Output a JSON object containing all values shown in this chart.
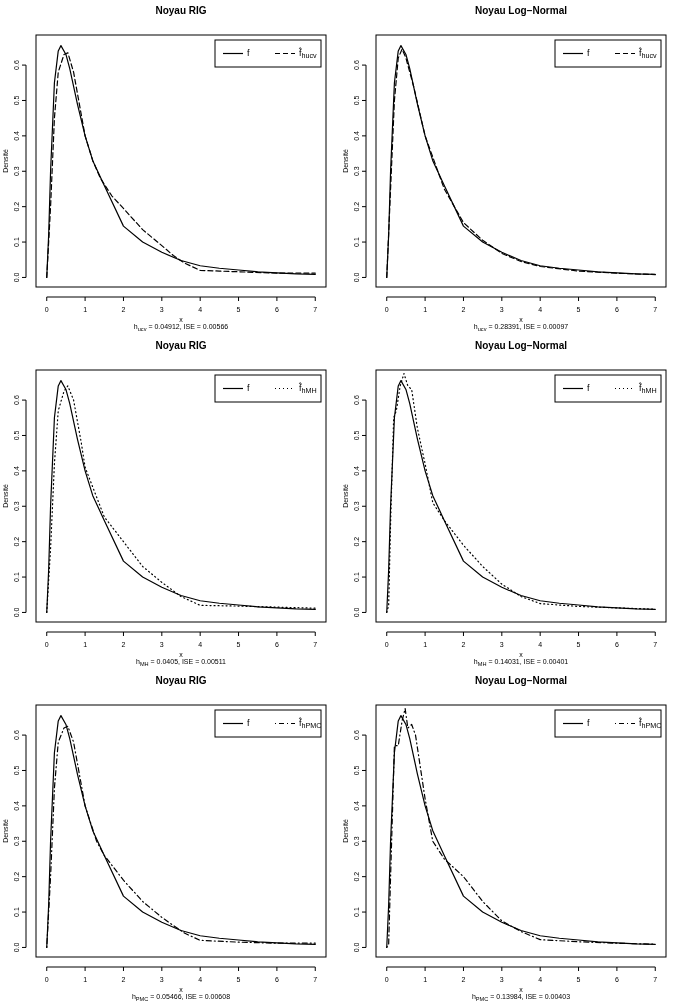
{
  "chart_data": [
    {
      "type": "line",
      "title": "Noyau RIG",
      "xlabel": "x",
      "ylabel": "Densité",
      "annotations": [
        "h$_{ucv}$ = 0.04912,  ISE = 0.00566"
      ],
      "xlim": [
        -0.28,
        7.28
      ],
      "ylim": [
        -0.027,
        0.685
      ],
      "xticks": [
        0,
        1,
        2,
        3,
        4,
        5,
        6,
        7
      ],
      "yticks": [
        {
          "value": 0,
          "label": "0.0"
        },
        {
          "value": 0.1,
          "label": "0.1"
        },
        {
          "value": 0.2,
          "label": "0.2"
        },
        {
          "value": 0.3,
          "label": "0.3"
        },
        {
          "value": 0.4,
          "label": "0.4"
        },
        {
          "value": 0.5,
          "label": "0.5"
        },
        {
          "value": 0.6,
          "label": "0.6"
        }
      ],
      "legend": "top right",
      "series": [
        {
          "name": "f",
          "color": "#000000",
          "line_style": "solid",
          "x": [
            0,
            0.05,
            0.1,
            0.2,
            0.3,
            0.37,
            0.5,
            0.6,
            0.8,
            1,
            1.2,
            1.5,
            2,
            2.5,
            3,
            3.5,
            4,
            4.5,
            5,
            5.5,
            6,
            6.5,
            7
          ],
          "values": [
            0,
            0.12,
            0.3,
            0.55,
            0.64,
            0.655,
            0.63,
            0.59,
            0.49,
            0.4,
            0.33,
            0.26,
            0.145,
            0.1,
            0.071,
            0.048,
            0.033,
            0.026,
            0.021,
            0.016,
            0.013,
            0.01,
            0.0085
          ]
        },
        {
          "name": "f̂$_{h}$$_{ucv}$",
          "color": "#000000",
          "line_style": "dashed",
          "x": [
            0,
            0.1,
            0.2,
            0.3,
            0.45,
            0.55,
            0.7,
            0.9,
            1,
            1.2,
            1.4,
            1.7,
            2,
            2.5,
            3,
            3.3,
            3.6,
            4,
            4.5,
            5,
            6,
            7
          ],
          "values": [
            0,
            0.2,
            0.45,
            0.58,
            0.63,
            0.635,
            0.58,
            0.46,
            0.4,
            0.33,
            0.28,
            0.23,
            0.195,
            0.135,
            0.09,
            0.062,
            0.04,
            0.02,
            0.018,
            0.016,
            0.012,
            0.012
          ]
        }
      ]
    },
    {
      "type": "line",
      "title": "Noyau Log−Normal",
      "xlabel": "x",
      "ylabel": "Densité",
      "annotations": [
        "h$_{ucv}$ = 0.28391,  ISE = 0.00097"
      ],
      "xlim": [
        -0.28,
        7.28
      ],
      "ylim": [
        -0.027,
        0.685
      ],
      "xticks": [
        0,
        1,
        2,
        3,
        4,
        5,
        6,
        7
      ],
      "yticks": [
        {
          "value": 0,
          "label": "0.0"
        },
        {
          "value": 0.1,
          "label": "0.1"
        },
        {
          "value": 0.2,
          "label": "0.2"
        },
        {
          "value": 0.3,
          "label": "0.3"
        },
        {
          "value": 0.4,
          "label": "0.4"
        },
        {
          "value": 0.5,
          "label": "0.5"
        },
        {
          "value": 0.6,
          "label": "0.6"
        }
      ],
      "legend": "top right",
      "series": [
        {
          "name": "f",
          "color": "#000000",
          "line_style": "solid",
          "x": [
            0,
            0.05,
            0.1,
            0.2,
            0.3,
            0.37,
            0.5,
            0.6,
            0.8,
            1,
            1.2,
            1.5,
            2,
            2.5,
            3,
            3.5,
            4,
            4.5,
            5,
            5.5,
            6,
            6.5,
            7
          ],
          "values": [
            0,
            0.12,
            0.3,
            0.55,
            0.64,
            0.655,
            0.63,
            0.59,
            0.49,
            0.4,
            0.33,
            0.26,
            0.145,
            0.1,
            0.071,
            0.048,
            0.033,
            0.026,
            0.021,
            0.016,
            0.013,
            0.01,
            0.0085
          ]
        },
        {
          "name": "f̂$_{h}$$_{ucv}$",
          "color": "#000000",
          "line_style": "dashed",
          "x": [
            0,
            0.1,
            0.2,
            0.3,
            0.4,
            0.5,
            0.7,
            1,
            1.5,
            2,
            2.5,
            3,
            3.5,
            4,
            5,
            6,
            7
          ],
          "values": [
            0,
            0.25,
            0.5,
            0.62,
            0.645,
            0.62,
            0.54,
            0.4,
            0.25,
            0.155,
            0.105,
            0.068,
            0.045,
            0.031,
            0.018,
            0.012,
            0.008
          ]
        }
      ]
    },
    {
      "type": "line",
      "title": "Noyau RIG",
      "xlabel": "x",
      "ylabel": "Densité",
      "annotations": [
        "h$_{MH}$ = 0.0405,  ISE = 0.00511"
      ],
      "xlim": [
        -0.28,
        7.28
      ],
      "ylim": [
        -0.027,
        0.685
      ],
      "xticks": [
        0,
        1,
        2,
        3,
        4,
        5,
        6,
        7
      ],
      "yticks": [
        {
          "value": 0,
          "label": "0.0"
        },
        {
          "value": 0.1,
          "label": "0.1"
        },
        {
          "value": 0.2,
          "label": "0.2"
        },
        {
          "value": 0.3,
          "label": "0.3"
        },
        {
          "value": 0.4,
          "label": "0.4"
        },
        {
          "value": 0.5,
          "label": "0.5"
        },
        {
          "value": 0.6,
          "label": "0.6"
        }
      ],
      "legend": "top right",
      "series": [
        {
          "name": "f",
          "color": "#000000",
          "line_style": "solid",
          "x": [
            0,
            0.05,
            0.1,
            0.2,
            0.3,
            0.37,
            0.5,
            0.6,
            0.8,
            1,
            1.2,
            1.5,
            2,
            2.5,
            3,
            3.5,
            4,
            4.5,
            5,
            5.5,
            6,
            6.5,
            7
          ],
          "values": [
            0,
            0.12,
            0.3,
            0.55,
            0.64,
            0.655,
            0.63,
            0.59,
            0.49,
            0.4,
            0.33,
            0.26,
            0.145,
            0.1,
            0.071,
            0.048,
            0.033,
            0.026,
            0.021,
            0.016,
            0.013,
            0.01,
            0.0085
          ]
        },
        {
          "name": "f̂$_{h}$$_{MH}$",
          "color": "#000000",
          "line_style": "dotted",
          "x": [
            0,
            0.1,
            0.2,
            0.3,
            0.45,
            0.55,
            0.7,
            0.9,
            1,
            1.5,
            2,
            2.5,
            3,
            3.5,
            4,
            5,
            6,
            7
          ],
          "values": [
            0,
            0.18,
            0.42,
            0.57,
            0.625,
            0.64,
            0.6,
            0.48,
            0.41,
            0.27,
            0.2,
            0.13,
            0.085,
            0.045,
            0.02,
            0.018,
            0.015,
            0.012
          ]
        }
      ]
    },
    {
      "type": "line",
      "title": "Noyau Log−Normal",
      "xlabel": "x",
      "ylabel": "Densité",
      "annotations": [
        "h$_{MH}$ = 0.14031,  ISE = 0.00401"
      ],
      "xlim": [
        -0.28,
        7.28
      ],
      "ylim": [
        -0.027,
        0.685
      ],
      "xticks": [
        0,
        1,
        2,
        3,
        4,
        5,
        6,
        7
      ],
      "yticks": [
        {
          "value": 0,
          "label": "0.0"
        },
        {
          "value": 0.1,
          "label": "0.1"
        },
        {
          "value": 0.2,
          "label": "0.2"
        },
        {
          "value": 0.3,
          "label": "0.3"
        },
        {
          "value": 0.4,
          "label": "0.4"
        },
        {
          "value": 0.5,
          "label": "0.5"
        },
        {
          "value": 0.6,
          "label": "0.6"
        }
      ],
      "legend": "top right",
      "series": [
        {
          "name": "f",
          "color": "#000000",
          "line_style": "solid",
          "x": [
            0,
            0.05,
            0.1,
            0.2,
            0.3,
            0.37,
            0.5,
            0.6,
            0.8,
            1,
            1.2,
            1.5,
            2,
            2.5,
            3,
            3.5,
            4,
            4.5,
            5,
            5.5,
            6,
            6.5,
            7
          ],
          "values": [
            0,
            0.12,
            0.3,
            0.55,
            0.64,
            0.655,
            0.63,
            0.59,
            0.49,
            0.4,
            0.33,
            0.26,
            0.145,
            0.1,
            0.071,
            0.048,
            0.033,
            0.026,
            0.021,
            0.016,
            0.013,
            0.01,
            0.0085
          ]
        },
        {
          "name": "f̂$_{h}$$_{MH}$",
          "color": "#000000",
          "line_style": "dotted",
          "x": [
            0,
            0.05,
            0.1,
            0.18,
            0.25,
            0.35,
            0.45,
            0.55,
            0.65,
            0.8,
            1,
            1.2,
            1.5,
            2,
            2.5,
            3,
            3.5,
            4,
            5,
            6,
            7
          ],
          "values": [
            0,
            0.02,
            0.25,
            0.55,
            0.57,
            0.64,
            0.675,
            0.64,
            0.63,
            0.52,
            0.42,
            0.31,
            0.26,
            0.19,
            0.13,
            0.08,
            0.045,
            0.025,
            0.017,
            0.013,
            0.009
          ]
        }
      ]
    },
    {
      "type": "line",
      "title": "Noyau RIG",
      "xlabel": "x",
      "ylabel": "Densité",
      "annotations": [
        "h$_{PMC}$ = 0.05466,  ISE = 0.00608"
      ],
      "xlim": [
        -0.28,
        7.28
      ],
      "ylim": [
        -0.027,
        0.685
      ],
      "xticks": [
        0,
        1,
        2,
        3,
        4,
        5,
        6,
        7
      ],
      "yticks": [
        {
          "value": 0,
          "label": "0.0"
        },
        {
          "value": 0.1,
          "label": "0.1"
        },
        {
          "value": 0.2,
          "label": "0.2"
        },
        {
          "value": 0.3,
          "label": "0.3"
        },
        {
          "value": 0.4,
          "label": "0.4"
        },
        {
          "value": 0.5,
          "label": "0.5"
        },
        {
          "value": 0.6,
          "label": "0.6"
        }
      ],
      "legend": "top right",
      "series": [
        {
          "name": "f",
          "color": "#000000",
          "line_style": "solid",
          "x": [
            0,
            0.05,
            0.1,
            0.2,
            0.3,
            0.37,
            0.5,
            0.6,
            0.8,
            1,
            1.2,
            1.5,
            2,
            2.5,
            3,
            3.5,
            4,
            4.5,
            5,
            5.5,
            6,
            6.5,
            7
          ],
          "values": [
            0,
            0.12,
            0.3,
            0.55,
            0.64,
            0.655,
            0.63,
            0.59,
            0.49,
            0.4,
            0.33,
            0.26,
            0.145,
            0.1,
            0.071,
            0.048,
            0.033,
            0.026,
            0.021,
            0.016,
            0.013,
            0.01,
            0.0085
          ]
        },
        {
          "name": "f̂$_{h}$$_{PMC}$",
          "color": "#000000",
          "line_style": "dashdot",
          "x": [
            0,
            0.1,
            0.2,
            0.3,
            0.45,
            0.55,
            0.7,
            1,
            1.3,
            1.5,
            2,
            2.5,
            3,
            3.3,
            3.6,
            4,
            5,
            6,
            7
          ],
          "values": [
            0,
            0.2,
            0.45,
            0.58,
            0.62,
            0.625,
            0.58,
            0.4,
            0.3,
            0.26,
            0.19,
            0.13,
            0.085,
            0.062,
            0.04,
            0.02,
            0.015,
            0.012,
            0.012
          ]
        }
      ]
    },
    {
      "type": "line",
      "title": "Noyau Log−Normal",
      "xlabel": "x",
      "ylabel": "Densité",
      "annotations": [
        "h$_{PMC}$ = 0.13984,  ISE = 0.00403"
      ],
      "xlim": [
        -0.28,
        7.28
      ],
      "ylim": [
        -0.027,
        0.685
      ],
      "xticks": [
        0,
        1,
        2,
        3,
        4,
        5,
        6,
        7
      ],
      "yticks": [
        {
          "value": 0,
          "label": "0.0"
        },
        {
          "value": 0.1,
          "label": "0.1"
        },
        {
          "value": 0.2,
          "label": "0.2"
        },
        {
          "value": 0.3,
          "label": "0.3"
        },
        {
          "value": 0.4,
          "label": "0.4"
        },
        {
          "value": 0.5,
          "label": "0.5"
        },
        {
          "value": 0.6,
          "label": "0.6"
        }
      ],
      "legend": "top right",
      "series": [
        {
          "name": "f",
          "color": "#000000",
          "line_style": "solid",
          "x": [
            0,
            0.05,
            0.1,
            0.2,
            0.3,
            0.37,
            0.5,
            0.6,
            0.8,
            1,
            1.2,
            1.5,
            2,
            2.5,
            3,
            3.5,
            4,
            4.5,
            5,
            5.5,
            6,
            6.5,
            7
          ],
          "values": [
            0,
            0.12,
            0.3,
            0.55,
            0.64,
            0.655,
            0.63,
            0.59,
            0.49,
            0.4,
            0.33,
            0.26,
            0.145,
            0.1,
            0.071,
            0.048,
            0.033,
            0.026,
            0.021,
            0.016,
            0.013,
            0.01,
            0.0085
          ]
        },
        {
          "name": "f̂$_{h}$$_{PMC}$",
          "color": "#000000",
          "line_style": "dashdot",
          "x": [
            0,
            0.05,
            0.1,
            0.2,
            0.3,
            0.4,
            0.48,
            0.55,
            0.65,
            0.75,
            1,
            1.2,
            1.5,
            2,
            2.5,
            3,
            3.5,
            4,
            5,
            6,
            7
          ],
          "values": [
            0,
            0.01,
            0.2,
            0.57,
            0.57,
            0.64,
            0.675,
            0.62,
            0.63,
            0.6,
            0.42,
            0.3,
            0.25,
            0.2,
            0.13,
            0.075,
            0.045,
            0.022,
            0.016,
            0.012,
            0.009
          ]
        }
      ]
    }
  ]
}
